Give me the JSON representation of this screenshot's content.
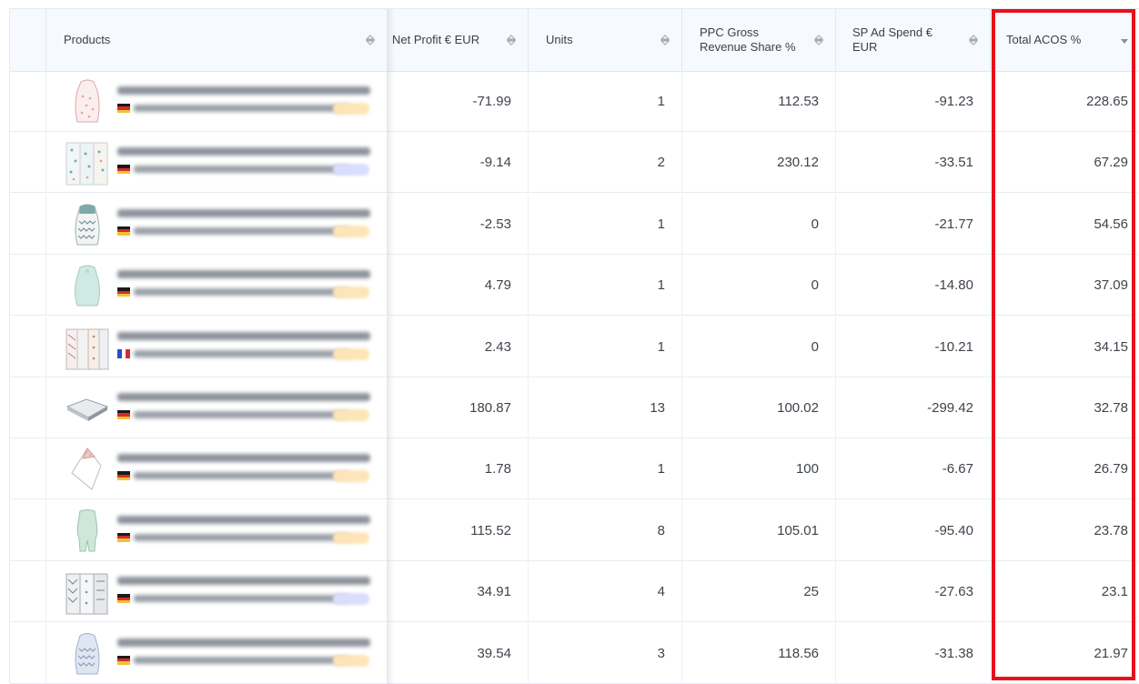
{
  "columns": {
    "products": "Products",
    "net_profit": "Net Profit € EUR",
    "units": "Units",
    "ppc_share": "PPC Gross Revenue Share %",
    "sp_ad_spend": "SP Ad Spend € EUR",
    "total_acos": "Total ACOS %"
  },
  "colors": {
    "highlight": "#e8101a",
    "header_bg": "#f6f9fd",
    "badge_orange": "#fde5b8",
    "badge_blue": "#d9defc"
  },
  "rows": [
    {
      "product_icon": "sleeping-bag-pink-icon",
      "flag": "de",
      "badge": "orange",
      "net_profit": "-71.99",
      "units": "1",
      "ppc_share": "112.53",
      "sp_ad_spend": "-91.23",
      "total_acos": "228.65"
    },
    {
      "product_icon": "muslin-cloth-pattern-icon",
      "flag": "de",
      "badge": "blue",
      "net_profit": "-9.14",
      "units": "2",
      "ppc_share": "230.12",
      "sp_ad_spend": "-33.51",
      "total_acos": "67.29"
    },
    {
      "product_icon": "sleeping-bag-teal-icon",
      "flag": "de",
      "badge": "orange",
      "net_profit": "-2.53",
      "units": "1",
      "ppc_share": "0",
      "sp_ad_spend": "-21.77",
      "total_acos": "54.56"
    },
    {
      "product_icon": "sleeping-bag-mint-icon",
      "flag": "de",
      "badge": "orange",
      "net_profit": "4.79",
      "units": "1",
      "ppc_share": "0",
      "sp_ad_spend": "-14.80",
      "total_acos": "37.09"
    },
    {
      "product_icon": "muslin-cloth-pack-icon",
      "flag": "fr",
      "badge": "orange",
      "net_profit": "2.43",
      "units": "1",
      "ppc_share": "0",
      "sp_ad_spend": "-10.21",
      "total_acos": "34.15"
    },
    {
      "product_icon": "blanket-grey-icon",
      "flag": "de",
      "badge": "orange",
      "net_profit": "180.87",
      "units": "13",
      "ppc_share": "100.02",
      "sp_ad_spend": "-299.42",
      "total_acos": "32.78"
    },
    {
      "product_icon": "hooded-towel-icon",
      "flag": "de",
      "badge": "orange",
      "net_profit": "1.78",
      "units": "1",
      "ppc_share": "100",
      "sp_ad_spend": "-6.67",
      "total_acos": "26.79"
    },
    {
      "product_icon": "sleeping-bag-feet-icon",
      "flag": "de",
      "badge": "orange",
      "net_profit": "115.52",
      "units": "8",
      "ppc_share": "105.01",
      "sp_ad_spend": "-95.40",
      "total_acos": "23.78"
    },
    {
      "product_icon": "muslin-cloth-grey-icon",
      "flag": "de",
      "badge": "blue",
      "net_profit": "34.91",
      "units": "4",
      "ppc_share": "25",
      "sp_ad_spend": "-27.63",
      "total_acos": "23.1"
    },
    {
      "product_icon": "sleeping-bag-blue-icon",
      "flag": "de",
      "badge": "orange",
      "net_profit": "39.54",
      "units": "3",
      "ppc_share": "118.56",
      "sp_ad_spend": "-31.38",
      "total_acos": "21.97"
    }
  ]
}
